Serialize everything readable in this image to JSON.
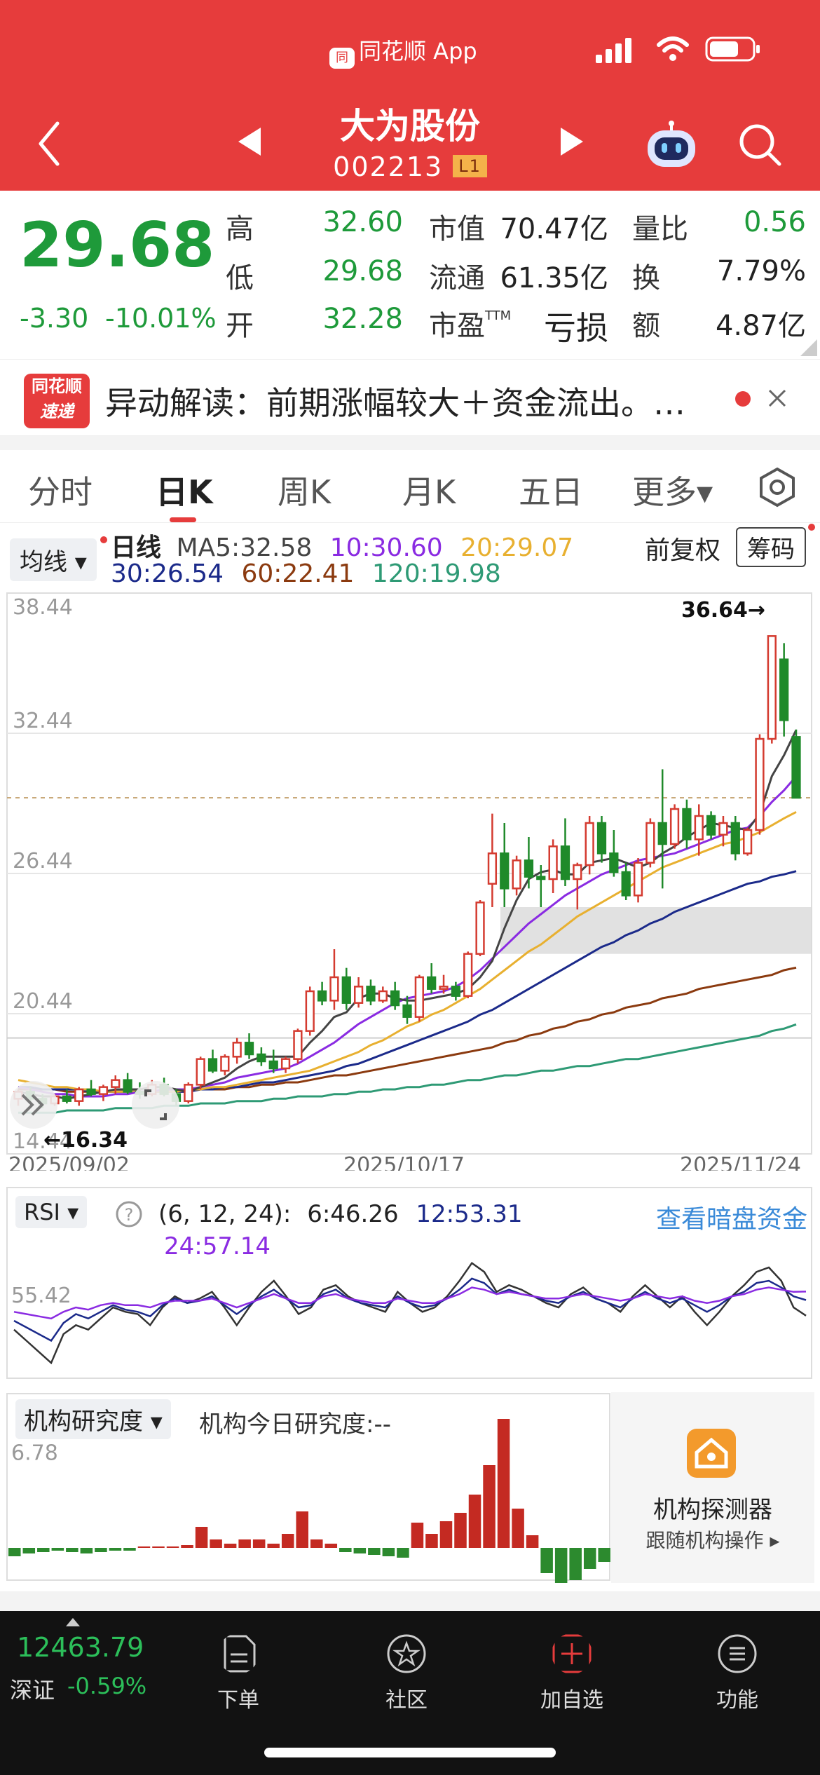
{
  "status": {
    "app_label": "同花顺 App",
    "logo_text": "同"
  },
  "header": {
    "stock_name": "大为股份",
    "stock_code": "002213",
    "level_badge": "L1"
  },
  "quote": {
    "price": "29.68",
    "change": "-3.30",
    "change_pct": "-10.01%",
    "high_label": "高",
    "high": "32.60",
    "low_label": "低",
    "low": "29.68",
    "open_label": "开",
    "open": "32.28",
    "mcap_label": "市值",
    "mcap": "70.47亿",
    "float_label": "流通",
    "float": "61.35亿",
    "pe_label": "市盈",
    "pe_sup": "TTM",
    "pe": "亏损",
    "vol_ratio_label": "量比",
    "vol_ratio": "0.56",
    "turnover_label": "换",
    "turnover": "7.79%",
    "amount_label": "额",
    "amount": "4.87亿"
  },
  "news": {
    "logo_line1": "同花顺",
    "logo_line2": "速递",
    "text": "异动解读：前期涨幅较大＋资金流出。…"
  },
  "tabs": [
    {
      "label": "分时"
    },
    {
      "label": "日K"
    },
    {
      "label": "周K"
    },
    {
      "label": "月K"
    },
    {
      "label": "五日"
    },
    {
      "label": "更多▾"
    }
  ],
  "ma": {
    "selector": "均线 ▾",
    "title": "日线",
    "ma5": "MA5:32.58",
    "ma10": "10:30.60",
    "ma20": "20:29.07",
    "ma30": "30:26.54",
    "ma60": "60:22.41",
    "ma120": "120:19.98",
    "adjust": "前复权",
    "chip_btn": "筹码"
  },
  "rsi": {
    "selector": "RSI ▾",
    "params": "(6, 12, 24):",
    "rsi6": "6:46.26",
    "rsi12": "12:53.31",
    "rsi24": "24:57.14",
    "link": "查看暗盘资金",
    "axis_label": "55.42"
  },
  "inst": {
    "selector": "机构研究度 ▾",
    "today": "机构今日研究度:--",
    "axis_label": "6.78",
    "card_title": "机构探测器",
    "card_sub": "跟随机构操作 ▸"
  },
  "bottom": {
    "index_value": "12463.79",
    "index_name": "深证",
    "index_change": "-0.59%",
    "items": [
      {
        "label": "下单"
      },
      {
        "label": "社区"
      },
      {
        "label": "加自选"
      },
      {
        "label": "功能"
      }
    ]
  },
  "chart_data": [
    {
      "type": "candlestick",
      "title": "日线",
      "x_start": "2025/09/02",
      "x_mid": "2025/10/17",
      "x_end": "2025/11/24",
      "y_ticks": [
        "38.44",
        "32.44",
        "26.44",
        "20.44",
        "14.44"
      ],
      "ylim": [
        14.44,
        38.44
      ],
      "max_label": "36.64→",
      "min_label": "←16.34",
      "candles": [
        [
          16.8,
          17.2,
          16.5,
          17.1
        ],
        [
          17.1,
          17.3,
          16.6,
          16.8
        ],
        [
          16.8,
          17.0,
          16.4,
          16.6
        ],
        [
          16.6,
          17.0,
          16.5,
          16.9
        ],
        [
          16.9,
          17.2,
          16.6,
          16.7
        ],
        [
          16.7,
          17.3,
          16.5,
          17.2
        ],
        [
          17.2,
          17.6,
          16.9,
          17.0
        ],
        [
          17.0,
          17.4,
          16.7,
          17.3
        ],
        [
          17.3,
          17.8,
          17.0,
          17.6
        ],
        [
          17.6,
          17.9,
          17.0,
          17.1
        ],
        [
          17.1,
          17.5,
          16.8,
          17.0
        ],
        [
          17.0,
          17.6,
          16.9,
          17.4
        ],
        [
          17.4,
          17.7,
          16.9,
          17.0
        ],
        [
          17.0,
          17.2,
          16.5,
          16.7
        ],
        [
          16.7,
          17.5,
          16.6,
          17.4
        ],
        [
          17.4,
          18.6,
          17.2,
          18.5
        ],
        [
          18.5,
          18.9,
          17.9,
          18.0
        ],
        [
          18.0,
          18.7,
          17.8,
          18.6
        ],
        [
          18.6,
          19.4,
          18.3,
          19.2
        ],
        [
          19.2,
          19.6,
          18.5,
          18.7
        ],
        [
          18.7,
          19.0,
          18.2,
          18.4
        ],
        [
          18.4,
          18.9,
          17.9,
          18.1
        ],
        [
          18.1,
          18.6,
          17.9,
          18.5
        ],
        [
          18.5,
          19.8,
          18.3,
          19.7
        ],
        [
          19.7,
          21.6,
          19.5,
          21.4
        ],
        [
          21.4,
          21.8,
          20.8,
          21.0
        ],
        [
          21.0,
          23.2,
          20.6,
          22.0
        ],
        [
          22.0,
          22.4,
          20.6,
          20.9
        ],
        [
          20.9,
          22.0,
          20.7,
          21.6
        ],
        [
          21.6,
          21.9,
          20.8,
          21.0
        ],
        [
          21.0,
          21.6,
          20.9,
          21.4
        ],
        [
          21.4,
          21.8,
          20.6,
          20.8
        ],
        [
          20.8,
          21.2,
          20.0,
          20.3
        ],
        [
          20.3,
          22.1,
          20.1,
          22.0
        ],
        [
          22.0,
          22.6,
          21.3,
          21.5
        ],
        [
          21.5,
          22.1,
          21.3,
          21.6
        ],
        [
          21.6,
          21.8,
          21.0,
          21.2
        ],
        [
          21.2,
          23.1,
          21.1,
          23.0
        ],
        [
          23.0,
          25.3,
          22.9,
          25.2
        ],
        [
          26.0,
          29.0,
          25.0,
          27.3
        ],
        [
          27.3,
          28.6,
          25.0,
          25.8
        ],
        [
          25.8,
          27.2,
          25.5,
          27.0
        ],
        [
          27.0,
          28.0,
          25.8,
          26.3
        ],
        [
          26.3,
          26.8,
          25.0,
          26.2
        ],
        [
          26.2,
          27.9,
          25.6,
          27.6
        ],
        [
          27.6,
          28.8,
          25.9,
          26.2
        ],
        [
          26.2,
          26.9,
          24.9,
          26.8
        ],
        [
          26.8,
          28.9,
          26.4,
          28.6
        ],
        [
          28.6,
          28.9,
          26.9,
          27.3
        ],
        [
          27.3,
          28.3,
          26.3,
          26.5
        ],
        [
          26.5,
          26.9,
          25.3,
          25.5
        ],
        [
          25.5,
          27.1,
          25.2,
          26.9
        ],
        [
          26.9,
          28.8,
          26.7,
          28.6
        ],
        [
          28.6,
          30.9,
          25.8,
          27.7
        ],
        [
          27.7,
          29.4,
          27.5,
          29.2
        ],
        [
          29.2,
          29.6,
          27.5,
          27.9
        ],
        [
          27.9,
          29.4,
          27.2,
          28.9
        ],
        [
          28.9,
          29.1,
          27.9,
          28.1
        ],
        [
          28.1,
          28.9,
          27.6,
          28.6
        ],
        [
          28.6,
          28.9,
          27.0,
          27.3
        ],
        [
          27.3,
          28.4,
          27.2,
          28.3
        ],
        [
          28.3,
          32.4,
          28.1,
          32.2
        ],
        [
          32.2,
          36.6,
          32.0,
          36.6
        ],
        [
          35.6,
          36.3,
          32.3,
          33.0
        ],
        [
          32.28,
          32.6,
          29.68,
          29.68
        ]
      ],
      "ma_lines": {
        "MA5": [
          17.1,
          17.0,
          16.9,
          16.9,
          16.8,
          16.9,
          17.0,
          17.1,
          17.2,
          17.2,
          17.2,
          17.3,
          17.3,
          17.2,
          17.1,
          17.3,
          17.5,
          17.7,
          18.1,
          18.4,
          18.6,
          18.6,
          18.6,
          18.6,
          19.2,
          19.7,
          20.3,
          20.5,
          21.1,
          21.3,
          21.3,
          21.1,
          21.0,
          21.0,
          21.1,
          21.2,
          21.3,
          21.5,
          22.0,
          22.7,
          24.1,
          25.3,
          26.2,
          26.5,
          26.6,
          26.4,
          26.4,
          26.9,
          27.0,
          27.1,
          26.9,
          26.7,
          26.9,
          27.3,
          27.6,
          28.0,
          28.3,
          28.6,
          28.5,
          28.4,
          28.3,
          29.0,
          30.6,
          31.5,
          32.58
        ],
        "MA10": [
          17.3,
          17.2,
          17.1,
          17.0,
          17.0,
          16.9,
          16.9,
          16.9,
          17.0,
          17.0,
          17.1,
          17.1,
          17.2,
          17.2,
          17.2,
          17.3,
          17.4,
          17.5,
          17.7,
          17.8,
          17.9,
          18.0,
          18.1,
          18.3,
          18.6,
          18.9,
          19.2,
          19.6,
          20.0,
          20.3,
          20.6,
          20.9,
          21.1,
          21.2,
          21.3,
          21.4,
          21.6,
          21.9,
          22.3,
          22.8,
          23.3,
          23.8,
          24.3,
          24.7,
          25.1,
          25.5,
          25.8,
          26.1,
          26.4,
          26.6,
          26.8,
          27.0,
          27.1,
          27.2,
          27.3,
          27.5,
          27.7,
          27.9,
          28.1,
          28.3,
          28.4,
          28.9,
          29.5,
          30.0,
          30.6
        ],
        "MA20": [
          17.6,
          17.5,
          17.4,
          17.3,
          17.3,
          17.2,
          17.2,
          17.1,
          17.1,
          17.1,
          17.1,
          17.1,
          17.1,
          17.1,
          17.2,
          17.2,
          17.3,
          17.3,
          17.4,
          17.5,
          17.6,
          17.7,
          17.8,
          17.9,
          18.0,
          18.2,
          18.4,
          18.6,
          18.8,
          19.1,
          19.3,
          19.6,
          19.9,
          20.1,
          20.4,
          20.6,
          20.9,
          21.2,
          21.5,
          21.9,
          22.3,
          22.7,
          23.1,
          23.4,
          23.8,
          24.2,
          24.6,
          24.9,
          25.2,
          25.5,
          25.8,
          26.1,
          26.4,
          26.7,
          26.9,
          27.1,
          27.3,
          27.5,
          27.7,
          27.8,
          28.0,
          28.2,
          28.5,
          28.8,
          29.07
        ],
        "MA30": [
          17.3,
          17.3,
          17.2,
          17.2,
          17.2,
          17.2,
          17.1,
          17.1,
          17.1,
          17.1,
          17.1,
          17.1,
          17.1,
          17.1,
          17.1,
          17.2,
          17.2,
          17.3,
          17.3,
          17.4,
          17.5,
          17.5,
          17.6,
          17.7,
          17.8,
          17.9,
          18.0,
          18.2,
          18.3,
          18.5,
          18.7,
          18.9,
          19.1,
          19.3,
          19.5,
          19.7,
          19.9,
          20.1,
          20.4,
          20.6,
          20.9,
          21.2,
          21.5,
          21.8,
          22.1,
          22.4,
          22.7,
          23.0,
          23.3,
          23.5,
          23.8,
          24.0,
          24.3,
          24.5,
          24.8,
          25.0,
          25.2,
          25.4,
          25.6,
          25.8,
          26.0,
          26.1,
          26.3,
          26.4,
          26.54
        ],
        "MA60": [
          17.2,
          17.2,
          17.2,
          17.2,
          17.1,
          17.1,
          17.1,
          17.1,
          17.1,
          17.1,
          17.1,
          17.1,
          17.1,
          17.1,
          17.1,
          17.2,
          17.2,
          17.2,
          17.3,
          17.3,
          17.4,
          17.4,
          17.5,
          17.5,
          17.6,
          17.7,
          17.8,
          17.8,
          17.9,
          18.0,
          18.1,
          18.2,
          18.3,
          18.4,
          18.5,
          18.6,
          18.7,
          18.8,
          18.9,
          19.0,
          19.2,
          19.3,
          19.5,
          19.6,
          19.8,
          19.9,
          20.1,
          20.2,
          20.4,
          20.5,
          20.7,
          20.8,
          20.9,
          21.1,
          21.2,
          21.3,
          21.5,
          21.6,
          21.7,
          21.8,
          21.9,
          22.0,
          22.1,
          22.3,
          22.41
        ],
        "MA120": [
          16.2,
          16.2,
          16.2,
          16.2,
          16.3,
          16.3,
          16.3,
          16.3,
          16.4,
          16.4,
          16.4,
          16.4,
          16.5,
          16.5,
          16.5,
          16.6,
          16.6,
          16.6,
          16.7,
          16.7,
          16.7,
          16.8,
          16.8,
          16.9,
          16.9,
          16.9,
          17.0,
          17.0,
          17.1,
          17.1,
          17.2,
          17.2,
          17.3,
          17.3,
          17.4,
          17.4,
          17.5,
          17.6,
          17.6,
          17.7,
          17.8,
          17.8,
          17.9,
          18.0,
          18.0,
          18.1,
          18.2,
          18.2,
          18.3,
          18.4,
          18.5,
          18.5,
          18.6,
          18.7,
          18.8,
          18.9,
          19.0,
          19.1,
          19.2,
          19.3,
          19.4,
          19.5,
          19.7,
          19.8,
          19.98
        ]
      }
    },
    {
      "type": "line",
      "title": "RSI (6, 12, 24)",
      "series": [
        {
          "name": "6",
          "values": [
            40,
            35,
            30,
            25,
            38,
            42,
            40,
            45,
            50,
            48,
            47,
            42,
            50,
            55,
            52,
            54,
            57,
            50,
            42,
            50,
            57,
            62,
            55,
            47,
            50,
            58,
            60,
            55,
            52,
            50,
            48,
            57,
            52,
            48,
            50,
            55,
            62,
            70,
            66,
            57,
            60,
            58,
            55,
            52,
            50,
            56,
            59,
            54,
            52,
            48,
            55,
            60,
            55,
            50,
            55,
            48,
            42,
            48,
            55,
            60,
            66,
            68,
            62,
            50,
            46.26
          ]
        },
        {
          "name": "12",
          "values": [
            44,
            41,
            38,
            35,
            43,
            47,
            45,
            48,
            51,
            49,
            48,
            46,
            51,
            54,
            52,
            53,
            55,
            51,
            47,
            51,
            55,
            58,
            54,
            50,
            51,
            56,
            58,
            54,
            52,
            51,
            50,
            55,
            52,
            50,
            51,
            54,
            58,
            63,
            61,
            56,
            58,
            56,
            55,
            53,
            52,
            55,
            57,
            54,
            52,
            50,
            54,
            57,
            54,
            52,
            54,
            51,
            48,
            51,
            55,
            57,
            61,
            62,
            59,
            55,
            53.31
          ]
        },
        {
          "name": "24",
          "values": [
            48,
            47,
            46,
            45,
            48,
            50,
            49,
            51,
            52,
            51,
            51,
            50,
            52,
            53,
            53,
            53,
            54,
            52,
            50,
            52,
            54,
            56,
            54,
            52,
            52,
            55,
            56,
            54,
            53,
            52,
            52,
            54,
            53,
            52,
            52,
            54,
            56,
            59,
            58,
            56,
            57,
            56,
            55,
            54,
            54,
            55,
            56,
            55,
            54,
            53,
            54,
            56,
            55,
            54,
            55,
            53,
            52,
            53,
            55,
            56,
            58,
            59,
            58,
            57,
            57.14
          ]
        }
      ],
      "axis_label": "55.42"
    },
    {
      "type": "bar",
      "title": "机构研究度",
      "values": [
        -0.6,
        -0.4,
        -0.3,
        -0.2,
        -0.3,
        -0.4,
        -0.3,
        -0.2,
        -0.2,
        0.1,
        0.1,
        0.1,
        0.2,
        1.5,
        0.6,
        0.3,
        0.6,
        0.6,
        0.3,
        1.0,
        2.6,
        0.6,
        0.3,
        -0.3,
        -0.4,
        -0.5,
        -0.6,
        -0.7,
        1.8,
        1.0,
        1.9,
        2.5,
        3.8,
        5.9,
        9.2,
        2.8,
        0.9,
        -1.8,
        -2.5,
        -2.3,
        -1.5,
        -1.0
      ],
      "axis_label": "6.78"
    }
  ]
}
